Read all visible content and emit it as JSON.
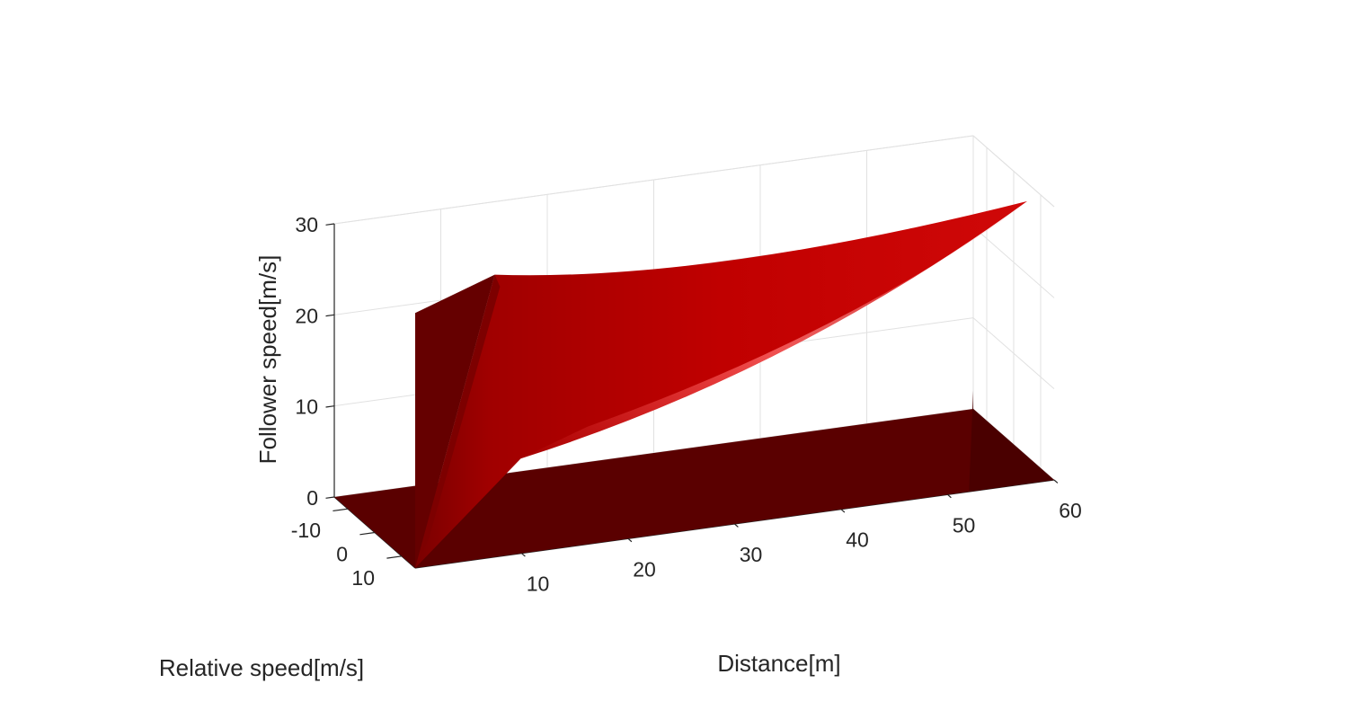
{
  "chart_data": {
    "type": "surface3d",
    "xlabel": "Distance[m]",
    "ylabel": "Relative speed[m/s]",
    "zlabel": "Follower speed[m/s]",
    "xlim": [
      0,
      60
    ],
    "ylim": [
      -15,
      15
    ],
    "zlim": [
      0,
      30
    ],
    "xticks": [
      10,
      20,
      30,
      40,
      50,
      60
    ],
    "yticks": [
      -10,
      0,
      10
    ],
    "zticks": [
      0,
      10,
      20,
      30
    ],
    "xtick_labels": [
      "10",
      "20",
      "30",
      "40",
      "50",
      "60"
    ],
    "ytick_labels": [
      "-10",
      "0",
      "10"
    ],
    "ztick_labels": [
      "0",
      "10",
      "20",
      "30"
    ],
    "grid": true,
    "surface_color": "#c00000",
    "shadow_color": "#5a0000",
    "series": [
      {
        "values": [
          {
            "x": 0,
            "y": 15,
            "z": 0
          },
          {
            "x": 0,
            "y": -15,
            "z": 0
          },
          {
            "x": 60,
            "y": -15,
            "z": 0
          },
          {
            "x": 60,
            "y": 15,
            "z": 0
          }
        ]
      },
      {
        "values": [
          {
            "x": 0,
            "y": 15,
            "z": 0
          },
          {
            "x": 0,
            "y": 15,
            "z": 28
          },
          {
            "x": 10,
            "y": 5,
            "z": 28
          },
          {
            "x": 10,
            "y": -15,
            "z": 0
          },
          {
            "x": 0,
            "y": -15,
            "z": 0
          }
        ]
      },
      {
        "values": [
          {
            "x": 10,
            "y": 5,
            "z": 28
          },
          {
            "x": 20,
            "y": 5,
            "z": 27
          },
          {
            "x": 40,
            "y": 5,
            "z": 27
          },
          {
            "x": 60,
            "y": 5,
            "z": 28
          },
          {
            "x": 20,
            "y": -10,
            "z": 2
          },
          {
            "x": 10,
            "y": -15,
            "z": 0
          }
        ]
      }
    ]
  }
}
